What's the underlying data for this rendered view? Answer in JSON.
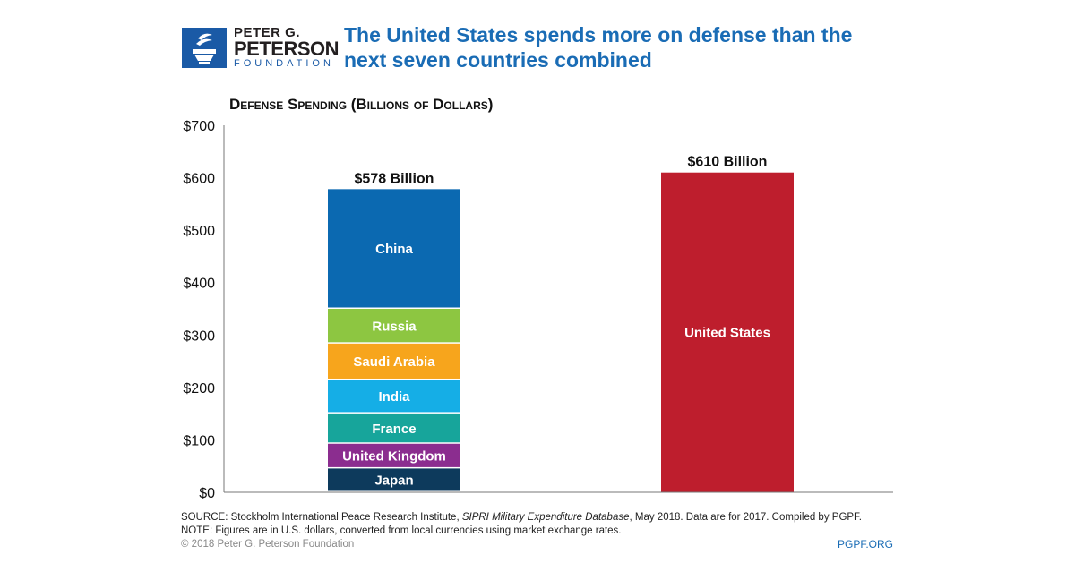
{
  "logo": {
    "line1": "PETER G.",
    "line2": "PETERSON",
    "line3": "FOUNDATION"
  },
  "title": "The United States spends more on defense than the next seven countries combined",
  "chart_data": {
    "type": "bar",
    "stacked": true,
    "title": "Defense Spending (Billions of Dollars)",
    "ylim": [
      0,
      700
    ],
    "yticks": [
      0,
      100,
      200,
      300,
      400,
      500,
      600,
      700
    ],
    "ytick_labels": [
      "$0",
      "$100",
      "$200",
      "$300",
      "$400",
      "$500",
      "$600",
      "$700"
    ],
    "grid": false,
    "bars": [
      {
        "total_label": "$578 Billion",
        "segments": [
          {
            "name": "Japan",
            "value": 45.4,
            "color": "#0d3a5c"
          },
          {
            "name": "United Kingdom",
            "value": 47.2,
            "color": "#8b2d8f"
          },
          {
            "name": "France",
            "value": 57.8,
            "color": "#17a59b"
          },
          {
            "name": "India",
            "value": 63.9,
            "color": "#15aee6"
          },
          {
            "name": "Saudi Arabia",
            "value": 69.4,
            "color": "#f7a51c"
          },
          {
            "name": "Russia",
            "value": 66.3,
            "color": "#8dc641"
          },
          {
            "name": "China",
            "value": 228.2,
            "color": "#0b69b1"
          }
        ]
      },
      {
        "total_label": "$610 Billion",
        "segments": [
          {
            "name": "United States",
            "value": 610,
            "color": "#be1e2d"
          }
        ]
      }
    ]
  },
  "footer": {
    "source_prefix": "SOURCE: Stockholm International Peace Research Institute, ",
    "source_italic": "SIPRI Military Expenditure Database",
    "source_suffix": ", May 2018. Data are for 2017. Compiled by PGPF.",
    "note": "NOTE: Figures are in U.S. dollars, converted from local currencies using market exchange rates.",
    "copyright": "© 2018 Peter G. Peterson Foundation",
    "site": "PGPF.ORG"
  }
}
